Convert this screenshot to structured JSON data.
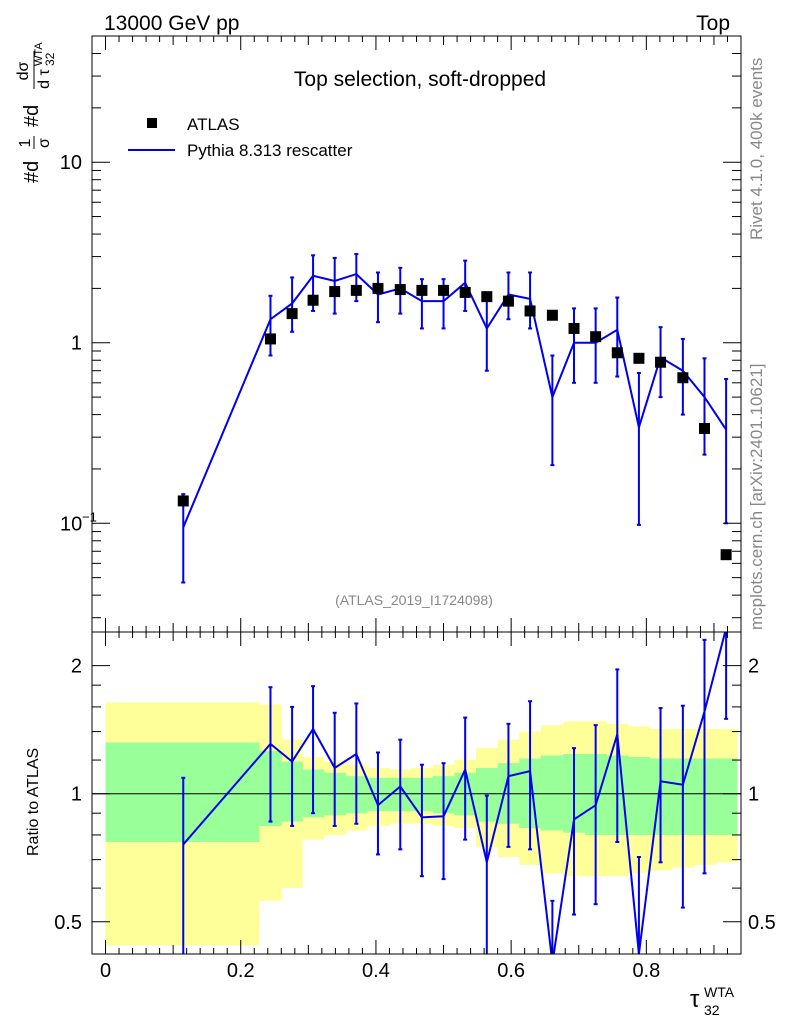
{
  "header": {
    "left": "13000 GeV pp",
    "right": "Top"
  },
  "side_text": {
    "rivet": "Rivet 4.1.0,  400k events",
    "mcplots": "mcplots.cern.ch [arXiv:2401.10621]"
  },
  "colors": {
    "mc": "#0000ee",
    "data": "#000000",
    "band_outer": "#ffff99",
    "band_inner": "#99ff99",
    "grey": "#888888"
  },
  "chart_data": [
    {
      "type": "scatter",
      "title": "Top selection, soft-dropped",
      "ylabel": "#d1/σ #dσ/dτ32WTA",
      "ylabel_parts": {
        "prefix": "#d",
        "frac1_num": "1",
        "frac1_den": "σ",
        "prefix2": "#d",
        "frac2_num": "dσ",
        "frac2_den": "d τ",
        "sub": "32",
        "sup": "WTA"
      },
      "yscale": "log",
      "ylim": [
        0.025,
        50
      ],
      "xlim": [
        -0.02,
        0.94
      ],
      "yticks": [
        {
          "value": 0.1,
          "label": "10",
          "sup": "−1"
        },
        {
          "value": 1,
          "label": "1",
          "sup": ""
        },
        {
          "value": 10,
          "label": "10",
          "sup": ""
        }
      ],
      "watermark": "(ATLAS_2019_I1724098)",
      "legend": {
        "position": "top-left",
        "entries": [
          "ATLAS",
          "Pythia 8.313 rescatter"
        ]
      },
      "series": [
        {
          "name": "ATLAS",
          "kind": "markers",
          "x": [
            0.115,
            0.244,
            0.276,
            0.307,
            0.339,
            0.371,
            0.403,
            0.436,
            0.468,
            0.5,
            0.532,
            0.564,
            0.596,
            0.628,
            0.661,
            0.693,
            0.725,
            0.757,
            0.789,
            0.821,
            0.854,
            0.886,
            0.918
          ],
          "y": [
            0.133,
            1.05,
            1.45,
            1.72,
            1.92,
            1.95,
            2.0,
            1.97,
            1.95,
            1.95,
            1.9,
            1.8,
            1.7,
            1.5,
            1.42,
            1.2,
            1.08,
            0.88,
            0.82,
            0.78,
            0.64,
            0.335,
            0.067
          ]
        },
        {
          "name": "Pythia 8.313 rescatter",
          "kind": "line",
          "x": [
            0.115,
            0.244,
            0.276,
            0.307,
            0.339,
            0.371,
            0.403,
            0.436,
            0.468,
            0.5,
            0.532,
            0.564,
            0.596,
            0.628,
            0.661,
            0.693,
            0.725,
            0.757,
            0.789,
            0.821,
            0.854,
            0.886,
            0.918
          ],
          "y": [
            0.095,
            1.35,
            1.65,
            2.35,
            2.2,
            2.4,
            1.85,
            2.0,
            1.7,
            1.7,
            2.15,
            1.2,
            1.85,
            1.75,
            0.5,
            1.0,
            1.0,
            1.18,
            0.34,
            0.83,
            0.7,
            0.5,
            0.33
          ],
          "err_lo": [
            0.047,
            0.85,
            1.15,
            1.5,
            1.45,
            1.7,
            1.3,
            1.45,
            1.2,
            1.2,
            1.5,
            0.7,
            1.35,
            1.2,
            0.21,
            0.6,
            0.6,
            0.65,
            0.098,
            0.5,
            0.4,
            0.24,
            0.1
          ],
          "err_hi": [
            0.145,
            1.82,
            2.3,
            3.05,
            2.95,
            3.1,
            2.45,
            2.6,
            2.25,
            2.25,
            2.85,
            1.8,
            2.45,
            2.45,
            0.85,
            1.55,
            1.55,
            1.78,
            0.68,
            1.22,
            1.05,
            0.82,
            0.63
          ]
        }
      ]
    },
    {
      "type": "line",
      "ylabel": "Ratio to ATLAS",
      "xlabel": "τ32WTA",
      "xlabel_parts": {
        "base": "τ",
        "sub": "32",
        "sup": "WTA"
      },
      "yscale": "log",
      "ylim": [
        0.42,
        2.4
      ],
      "xlim": [
        -0.02,
        0.94
      ],
      "xticks": [
        {
          "value": 0,
          "label": "0"
        },
        {
          "value": 0.2,
          "label": "0.2"
        },
        {
          "value": 0.4,
          "label": "0.4"
        },
        {
          "value": 0.6,
          "label": "0.6"
        },
        {
          "value": 0.8,
          "label": "0.8"
        }
      ],
      "yticks": [
        {
          "value": 0.5,
          "label": "0.5"
        },
        {
          "value": 1,
          "label": "1"
        },
        {
          "value": 2,
          "label": "2"
        }
      ],
      "bands": {
        "edges": [
          0.0,
          0.227,
          0.26,
          0.291,
          0.323,
          0.355,
          0.387,
          0.42,
          0.452,
          0.484,
          0.516,
          0.548,
          0.58,
          0.612,
          0.644,
          0.677,
          0.709,
          0.741,
          0.773,
          0.805,
          0.837,
          0.87,
          0.902,
          0.934
        ],
        "outer_lo": [
          0.44,
          0.56,
          0.6,
          0.78,
          0.8,
          0.82,
          0.84,
          0.85,
          0.85,
          0.84,
          0.83,
          0.75,
          0.71,
          0.68,
          0.65,
          0.64,
          0.64,
          0.64,
          0.65,
          0.66,
          0.67,
          0.68,
          0.69
        ],
        "outer_hi": [
          1.64,
          1.62,
          1.34,
          1.22,
          1.19,
          1.17,
          1.15,
          1.14,
          1.15,
          1.17,
          1.2,
          1.28,
          1.34,
          1.4,
          1.45,
          1.48,
          1.48,
          1.46,
          1.44,
          1.42,
          1.42,
          1.42,
          1.42
        ],
        "inner_lo": [
          0.77,
          0.84,
          0.86,
          0.88,
          0.89,
          0.9,
          0.91,
          0.91,
          0.91,
          0.9,
          0.89,
          0.86,
          0.85,
          0.83,
          0.82,
          0.81,
          0.8,
          0.8,
          0.8,
          0.8,
          0.8,
          0.8,
          0.8
        ],
        "inner_hi": [
          1.32,
          1.26,
          1.19,
          1.14,
          1.12,
          1.1,
          1.09,
          1.09,
          1.09,
          1.1,
          1.12,
          1.15,
          1.18,
          1.21,
          1.23,
          1.24,
          1.24,
          1.23,
          1.22,
          1.21,
          1.21,
          1.21,
          1.21
        ]
      },
      "series": [
        {
          "name": "Pythia 8.313 rescatter",
          "x": [
            0.115,
            0.244,
            0.276,
            0.307,
            0.339,
            0.371,
            0.403,
            0.436,
            0.468,
            0.5,
            0.532,
            0.564,
            0.596,
            0.628,
            0.661,
            0.693,
            0.725,
            0.757,
            0.789,
            0.821,
            0.854,
            0.886,
            0.918
          ],
          "y": [
            0.76,
            1.31,
            1.19,
            1.42,
            1.15,
            1.24,
            0.94,
            1.04,
            0.88,
            0.885,
            1.14,
            0.69,
            1.1,
            1.13,
            0.4,
            0.87,
            0.94,
            1.38,
            0.42,
            1.07,
            1.05,
            1.56,
            2.45
          ],
          "err_lo": [
            0.38,
            0.86,
            0.84,
            0.9,
            0.84,
            0.85,
            0.72,
            0.74,
            0.64,
            0.63,
            0.78,
            0.41,
            0.75,
            0.74,
            0.24,
            0.52,
            0.55,
            0.77,
            0.32,
            0.69,
            0.54,
            0.65,
            1.5
          ],
          "err_hi": [
            1.09,
            1.78,
            1.6,
            1.79,
            1.55,
            1.63,
            1.25,
            1.34,
            1.17,
            1.18,
            1.51,
            0.99,
            1.46,
            1.65,
            0.56,
            1.28,
            1.45,
            1.96,
            0.71,
            1.59,
            1.61,
            2.3,
            3.5
          ]
        }
      ]
    }
  ]
}
